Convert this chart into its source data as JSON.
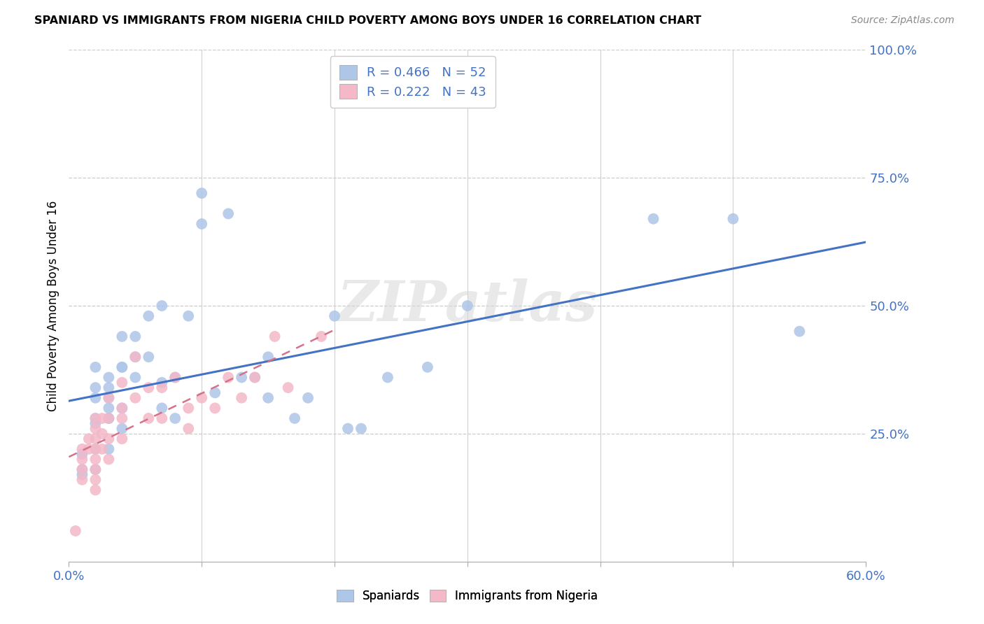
{
  "title": "SPANIARD VS IMMIGRANTS FROM NIGERIA CHILD POVERTY AMONG BOYS UNDER 16 CORRELATION CHART",
  "source": "Source: ZipAtlas.com",
  "ylabel": "Child Poverty Among Boys Under 16",
  "xlim": [
    0.0,
    0.6
  ],
  "ylim": [
    0.0,
    1.0
  ],
  "xtick_labels_shown": [
    "0.0%",
    "60.0%"
  ],
  "xtick_values_shown": [
    0.0,
    0.6
  ],
  "xtick_minor": [
    0.1,
    0.2,
    0.3,
    0.4,
    0.5
  ],
  "ytick_labels": [
    "25.0%",
    "50.0%",
    "75.0%",
    "100.0%"
  ],
  "ytick_values": [
    0.25,
    0.5,
    0.75,
    1.0
  ],
  "legend_text_1": "R = 0.466   N = 52",
  "legend_text_2": "R = 0.222   N = 43",
  "legend_color_1": "#aec6e8",
  "legend_color_2": "#f4b8c8",
  "watermark": "ZIPatlas",
  "spaniards_color": "#aec6e8",
  "nigeria_color": "#f4b8c8",
  "spaniards_line_color": "#4472c4",
  "nigeria_line_color": "#d4728a",
  "spaniards_x": [
    0.01,
    0.01,
    0.01,
    0.02,
    0.02,
    0.02,
    0.02,
    0.02,
    0.02,
    0.02,
    0.03,
    0.03,
    0.03,
    0.03,
    0.03,
    0.03,
    0.03,
    0.04,
    0.04,
    0.04,
    0.04,
    0.04,
    0.05,
    0.05,
    0.05,
    0.06,
    0.06,
    0.07,
    0.07,
    0.07,
    0.08,
    0.08,
    0.09,
    0.1,
    0.1,
    0.11,
    0.12,
    0.13,
    0.14,
    0.15,
    0.15,
    0.17,
    0.18,
    0.2,
    0.21,
    0.22,
    0.24,
    0.27,
    0.3,
    0.44,
    0.5,
    0.55
  ],
  "spaniards_y": [
    0.18,
    0.21,
    0.17,
    0.18,
    0.22,
    0.28,
    0.32,
    0.38,
    0.34,
    0.27,
    0.3,
    0.34,
    0.32,
    0.28,
    0.28,
    0.36,
    0.22,
    0.38,
    0.44,
    0.38,
    0.3,
    0.26,
    0.44,
    0.4,
    0.36,
    0.48,
    0.4,
    0.5,
    0.35,
    0.3,
    0.28,
    0.36,
    0.48,
    0.66,
    0.72,
    0.33,
    0.68,
    0.36,
    0.36,
    0.4,
    0.32,
    0.28,
    0.32,
    0.48,
    0.26,
    0.26,
    0.36,
    0.38,
    0.5,
    0.67,
    0.67,
    0.45
  ],
  "nigeria_x": [
    0.005,
    0.01,
    0.01,
    0.01,
    0.01,
    0.015,
    0.015,
    0.02,
    0.02,
    0.02,
    0.02,
    0.02,
    0.02,
    0.02,
    0.02,
    0.025,
    0.025,
    0.025,
    0.03,
    0.03,
    0.03,
    0.03,
    0.04,
    0.04,
    0.04,
    0.04,
    0.05,
    0.05,
    0.06,
    0.06,
    0.07,
    0.07,
    0.08,
    0.09,
    0.09,
    0.1,
    0.11,
    0.12,
    0.13,
    0.14,
    0.155,
    0.165,
    0.19
  ],
  "nigeria_y": [
    0.06,
    0.2,
    0.18,
    0.22,
    0.16,
    0.24,
    0.22,
    0.28,
    0.24,
    0.22,
    0.2,
    0.18,
    0.16,
    0.14,
    0.26,
    0.28,
    0.25,
    0.22,
    0.32,
    0.28,
    0.24,
    0.2,
    0.35,
    0.3,
    0.28,
    0.24,
    0.4,
    0.32,
    0.34,
    0.28,
    0.28,
    0.34,
    0.36,
    0.26,
    0.3,
    0.32,
    0.3,
    0.36,
    0.32,
    0.36,
    0.44,
    0.34,
    0.44
  ],
  "background_color": "#ffffff",
  "grid_color": "#cccccc"
}
